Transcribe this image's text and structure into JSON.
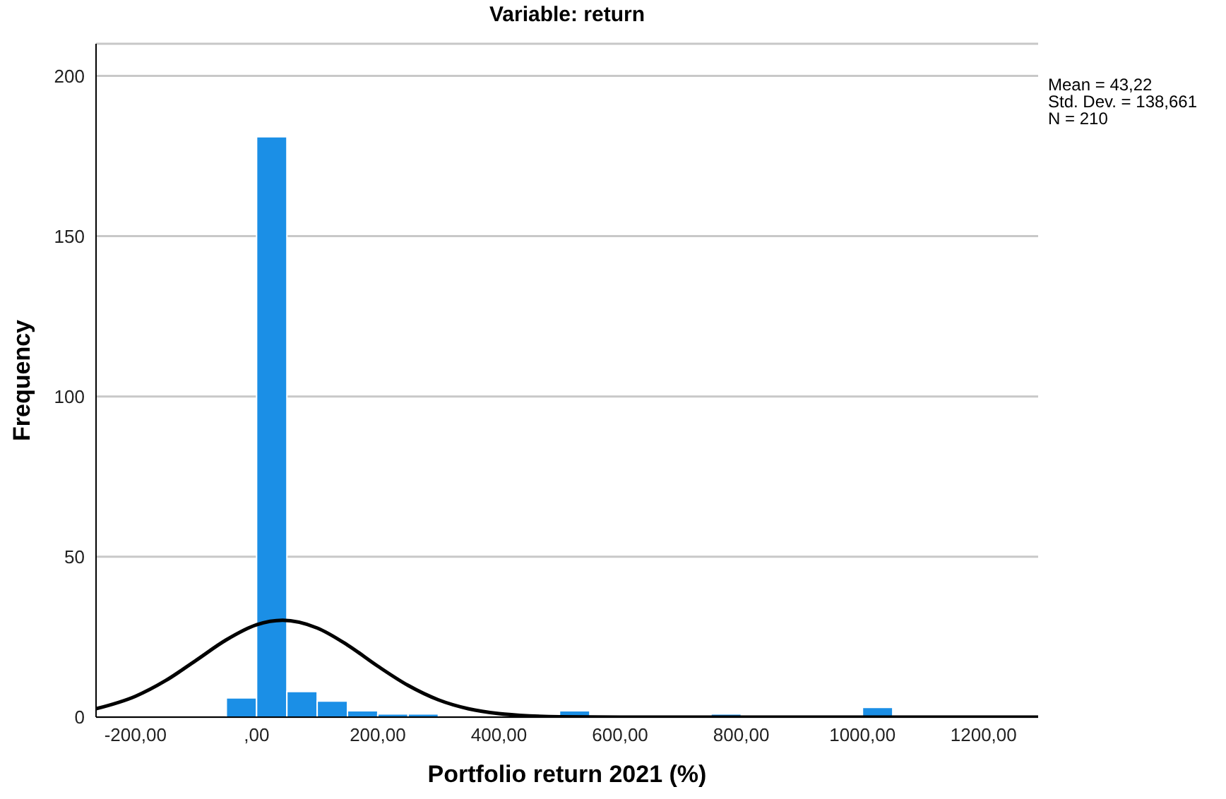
{
  "chart_data": {
    "type": "histogram",
    "title": "Variable: return",
    "xlabel": "Portfolio return 2021 (%)",
    "ylabel": "Frequency",
    "annotations": [
      "Mean = 43,22",
      "Std. Dev. = 138,661",
      "N = 210"
    ],
    "bins": [
      -50,
      0,
      50,
      100,
      150,
      200,
      250,
      300,
      350,
      400,
      450,
      500,
      550,
      600,
      650,
      700,
      750,
      800,
      850,
      900,
      950,
      1000,
      1050
    ],
    "values": [
      6,
      181,
      8,
      5,
      2,
      1,
      1,
      0,
      0,
      0,
      0,
      2,
      0,
      0,
      0,
      0,
      1,
      0,
      0,
      0,
      0,
      3
    ],
    "color": "#1b8fe6",
    "series": [
      {
        "type": "line",
        "color": "#000000",
        "x": [
          -265,
          -200,
          -150,
          -100,
          -50,
          0,
          43,
          100,
          150,
          200,
          250,
          300,
          350,
          400,
          450,
          500,
          600,
          800,
          1000,
          1290
        ],
        "values": [
          2.6,
          6.5,
          11.4,
          17.7,
          24.1,
          28.8,
          30.2,
          27.8,
          22.5,
          15.9,
          9.9,
          5.4,
          2.6,
          1.1,
          0.4,
          0.1,
          0,
          0,
          0,
          0
        ]
      }
    ],
    "xlim": [
      -265,
      1290
    ],
    "ylim": [
      0,
      210
    ],
    "xticks": [
      {
        "value": -200,
        "label": "-200,00"
      },
      {
        "value": 0,
        "label": ",00"
      },
      {
        "value": 200,
        "label": "200,00"
      },
      {
        "value": 400,
        "label": "400,00"
      },
      {
        "value": 600,
        "label": "600,00"
      },
      {
        "value": 800,
        "label": "800,00"
      },
      {
        "value": 1000,
        "label": "1000,00"
      },
      {
        "value": 1200,
        "label": "1200,00"
      }
    ],
    "yticks": [
      0,
      50,
      100,
      150,
      200
    ],
    "grid": "y"
  }
}
